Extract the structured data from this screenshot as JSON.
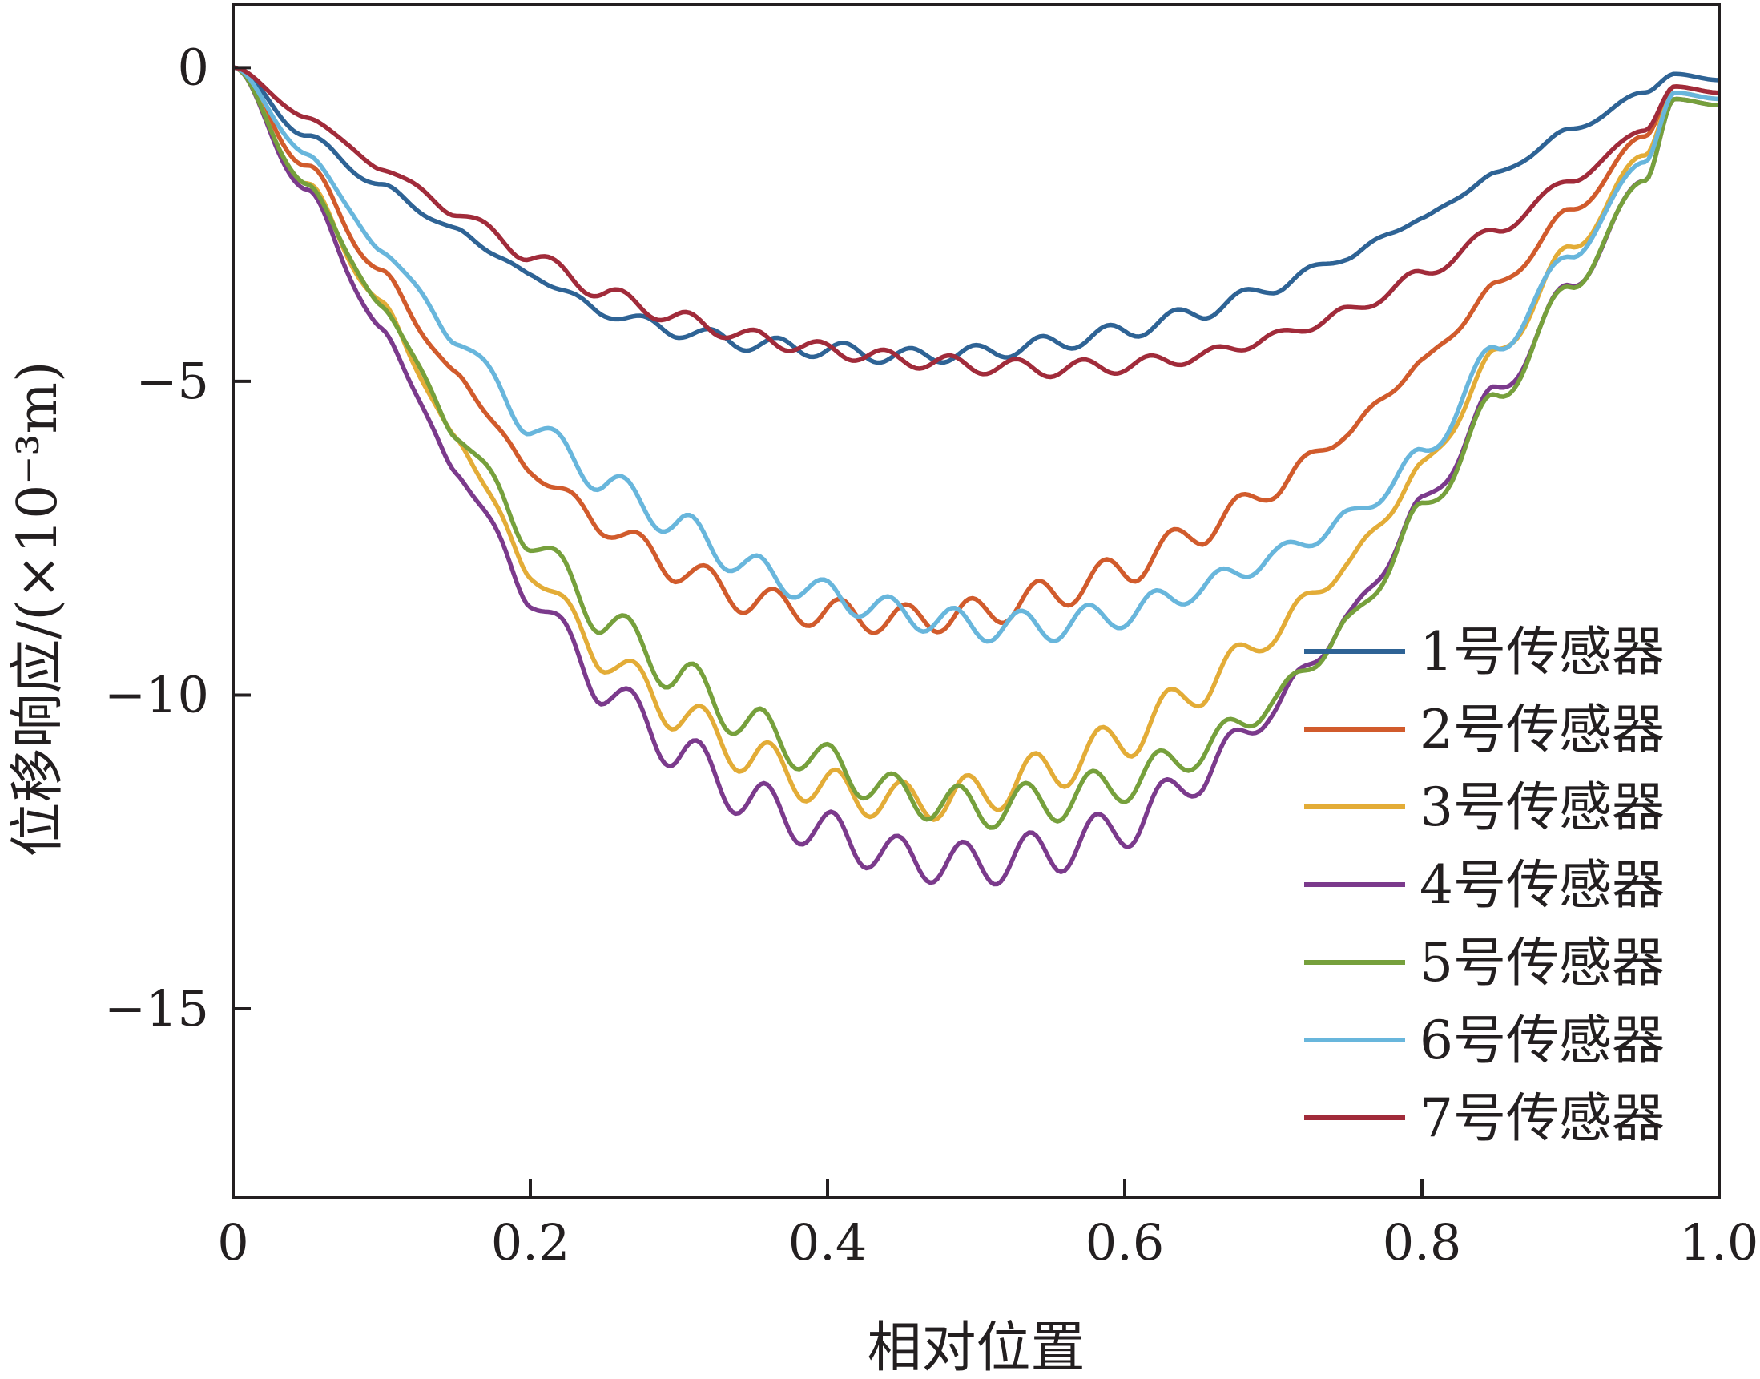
{
  "chart_data": {
    "type": "line",
    "xlabel": "相对位置",
    "ylabel": "位移响应/(×10⁻³m)",
    "xlim": [
      0,
      1.0
    ],
    "ylim": [
      -18,
      1
    ],
    "xticks": [
      0,
      0.2,
      0.4,
      0.6,
      0.8,
      1.0
    ],
    "xtick_labels": [
      "0",
      "0.2",
      "0.4",
      "0.6",
      "0.8",
      "1.0"
    ],
    "yticks": [
      0,
      -5,
      -10,
      -15
    ],
    "ytick_labels": [
      "0",
      "−5",
      "−10",
      "−15"
    ],
    "grid": false,
    "legend_position": "lower-right",
    "x": [
      0,
      0.05,
      0.1,
      0.15,
      0.2,
      0.25,
      0.3,
      0.35,
      0.4,
      0.45,
      0.5,
      0.55,
      0.6,
      0.65,
      0.7,
      0.75,
      0.8,
      0.85,
      0.9,
      0.95,
      0.97,
      1.0
    ],
    "series": [
      {
        "name": "1号传感器",
        "color": "#2e6395",
        "values": [
          0,
          -1.1,
          -1.9,
          -2.6,
          -3.3,
          -3.9,
          -4.2,
          -4.4,
          -4.5,
          -4.6,
          -4.55,
          -4.4,
          -4.2,
          -3.9,
          -3.5,
          -3.0,
          -2.4,
          -1.7,
          -1.0,
          -0.4,
          -0.1,
          -0.2
        ]
      },
      {
        "name": "2号传感器",
        "color": "#d15b2c",
        "values": [
          0,
          -1.6,
          -3.3,
          -4.9,
          -6.4,
          -7.3,
          -8.0,
          -8.5,
          -8.7,
          -8.8,
          -8.7,
          -8.4,
          -8.0,
          -7.4,
          -6.7,
          -5.8,
          -4.7,
          -3.5,
          -2.3,
          -1.1,
          -0.3,
          -0.4
        ]
      },
      {
        "name": "3号传感器",
        "color": "#e3ac37",
        "values": [
          0,
          -1.9,
          -3.8,
          -5.9,
          -8.0,
          -9.4,
          -10.3,
          -11.0,
          -11.5,
          -11.7,
          -11.6,
          -11.2,
          -10.7,
          -9.9,
          -9.0,
          -7.9,
          -6.4,
          -4.6,
          -2.9,
          -1.4,
          -0.4,
          -0.5
        ]
      },
      {
        "name": "4号传感器",
        "color": "#7b3a8c",
        "values": [
          0,
          -2.0,
          -4.2,
          -6.4,
          -8.4,
          -9.9,
          -10.9,
          -11.7,
          -12.2,
          -12.6,
          -12.7,
          -12.5,
          -12.1,
          -11.3,
          -10.2,
          -8.8,
          -7.0,
          -5.2,
          -3.5,
          -1.8,
          -0.5,
          -0.6
        ]
      },
      {
        "name": "5号传感器",
        "color": "#76a03c",
        "values": [
          0,
          -1.9,
          -3.8,
          -5.8,
          -7.5,
          -8.8,
          -9.7,
          -10.5,
          -11.1,
          -11.6,
          -11.8,
          -11.7,
          -11.4,
          -10.9,
          -10.1,
          -8.9,
          -7.1,
          -5.3,
          -3.5,
          -1.8,
          -0.5,
          -0.6
        ]
      },
      {
        "name": "6号传感器",
        "color": "#68b6dc",
        "values": [
          0,
          -1.4,
          -2.9,
          -4.3,
          -5.7,
          -6.6,
          -7.3,
          -8.0,
          -8.4,
          -8.7,
          -8.9,
          -8.9,
          -8.7,
          -8.3,
          -7.8,
          -7.2,
          -6.2,
          -4.5,
          -3.0,
          -1.5,
          -0.4,
          -0.5
        ]
      },
      {
        "name": "7号传感器",
        "color": "#a12b3a",
        "values": [
          0,
          -0.8,
          -1.6,
          -2.3,
          -3.0,
          -3.6,
          -4.0,
          -4.3,
          -4.5,
          -4.65,
          -4.75,
          -4.8,
          -4.75,
          -4.6,
          -4.3,
          -3.9,
          -3.3,
          -2.6,
          -1.8,
          -1.0,
          -0.3,
          -0.4
        ]
      }
    ]
  }
}
